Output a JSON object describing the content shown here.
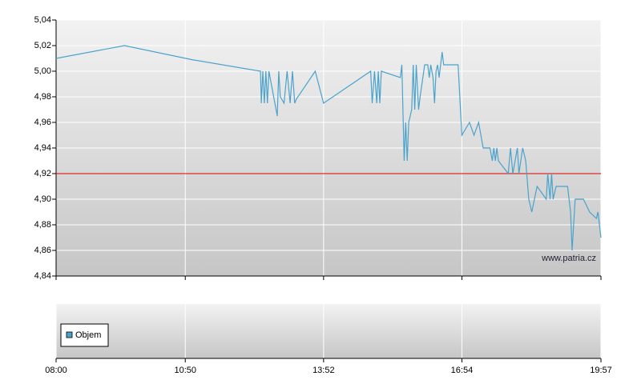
{
  "chart_data": {
    "type": "line",
    "x": [
      480,
      570,
      659,
      749,
      750,
      752,
      754,
      756,
      758,
      760,
      771,
      773,
      775,
      780,
      784,
      788,
      791,
      794,
      796,
      821,
      832,
      894,
      896,
      899,
      902,
      904,
      906,
      908,
      933,
      935,
      938,
      940,
      942,
      944,
      948,
      950,
      952,
      954,
      957,
      959,
      965,
      969,
      971,
      973,
      976,
      978,
      980,
      982,
      984,
      988,
      990,
      1009,
      1014,
      1024,
      1030,
      1036,
      1042,
      1051,
      1054,
      1056,
      1058,
      1060,
      1062,
      1075,
      1078,
      1081,
      1087,
      1089,
      1094,
      1098,
      1102,
      1106,
      1113,
      1125,
      1127,
      1130,
      1132,
      1134,
      1138,
      1153,
      1157,
      1159,
      1163,
      1174,
      1182,
      1191,
      1193,
      1197
    ],
    "values": [
      5.01,
      5.02,
      5.009,
      5.0,
      4.975,
      5.0,
      4.975,
      5.0,
      4.975,
      5.0,
      4.965,
      5.0,
      4.98,
      4.975,
      5.0,
      4.975,
      5.0,
      4.975,
      4.978,
      5.0,
      4.975,
      5.0,
      4.975,
      5.0,
      4.975,
      5.0,
      4.975,
      5.0,
      4.995,
      5.005,
      4.93,
      4.96,
      4.93,
      4.96,
      4.97,
      5.005,
      4.97,
      5.005,
      4.97,
      4.98,
      5.005,
      5.005,
      4.995,
      5.005,
      4.995,
      4.975,
      5.0,
      5.005,
      4.995,
      5.015,
      5.005,
      5.005,
      4.95,
      4.96,
      4.95,
      4.96,
      4.94,
      4.94,
      4.93,
      4.94,
      4.93,
      4.94,
      4.93,
      4.92,
      4.94,
      4.92,
      4.94,
      4.92,
      4.94,
      4.93,
      4.9,
      4.89,
      4.91,
      4.9,
      4.92,
      4.9,
      4.92,
      4.9,
      4.91,
      4.91,
      4.89,
      4.86,
      4.9,
      4.9,
      4.89,
      4.885,
      4.89,
      4.87
    ],
    "color": "#4aa3cc",
    "xlim": [
      480,
      1197
    ],
    "xticks": [
      {
        "value": 480,
        "label": "08:00"
      },
      {
        "value": 650,
        "label": "10:50"
      },
      {
        "value": 832,
        "label": "13:52"
      },
      {
        "value": 1014,
        "label": "16:54"
      },
      {
        "value": 1197,
        "label": "19:57"
      }
    ],
    "ylim": [
      4.84,
      5.04
    ],
    "yticks": [
      {
        "value": 4.84,
        "label": "4,84"
      },
      {
        "value": 4.86,
        "label": "4,86"
      },
      {
        "value": 4.88,
        "label": "4,88"
      },
      {
        "value": 4.9,
        "label": "4,90"
      },
      {
        "value": 4.92,
        "label": "4,92"
      },
      {
        "value": 4.94,
        "label": "4,94"
      },
      {
        "value": 4.96,
        "label": "4,96"
      },
      {
        "value": 4.98,
        "label": "4,98"
      },
      {
        "value": 5.0,
        "label": "5,00"
      },
      {
        "value": 5.02,
        "label": "5,02"
      },
      {
        "value": 5.04,
        "label": "5,04"
      }
    ],
    "grid": true,
    "reference_line": 4.92,
    "reference_color": "#dd0000",
    "watermark": "www.patria.cz",
    "volume_legend": "Objem"
  }
}
